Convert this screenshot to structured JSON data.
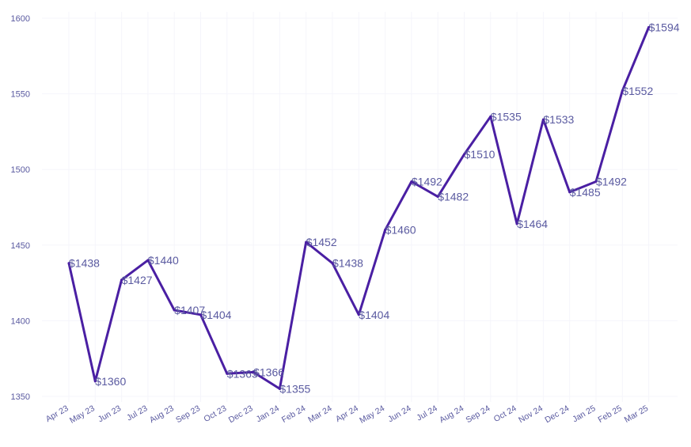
{
  "chart_data": {
    "type": "line",
    "title": "",
    "xlabel": "",
    "ylabel": "",
    "categories": [
      "Apr 23",
      "May 23",
      "Jun 23",
      "Jul 23",
      "Aug 23",
      "Sep 23",
      "Oct 23",
      "Dec 23",
      "Jan 24",
      "Feb 24",
      "Mar 24",
      "Apr 24",
      "May 24",
      "Jun 24",
      "Jul 24",
      "Aug 24",
      "Sep 24",
      "Oct 24",
      "Nov 24",
      "Dec 24",
      "Jan 25",
      "Feb 25",
      "Mar 25"
    ],
    "values": [
      1438,
      1360,
      1427,
      1440,
      1407,
      1404,
      1365,
      1366,
      1355,
      1452,
      1438,
      1404,
      1460,
      1492,
      1482,
      1510,
      1535,
      1464,
      1533,
      1485,
      1492,
      1552,
      1594
    ],
    "data_labels": [
      "$1438",
      "$1360",
      "$1427",
      "$1440",
      "$1407",
      "$1404",
      "$1365",
      "$1366",
      "$1355",
      "$1452",
      "$1438",
      "$1404",
      "$1460",
      "$1492",
      "$1482",
      "$1510",
      "$1535",
      "$1464",
      "$1533",
      "$1485",
      "$1492",
      "$1552",
      "$1594"
    ],
    "yticks": [
      1350,
      1400,
      1450,
      1500,
      1550,
      1600
    ],
    "ylim": [
      1344,
      1606
    ],
    "grid": true,
    "line_color": "#4a1fa3",
    "label_color": "#5a5aa0"
  }
}
